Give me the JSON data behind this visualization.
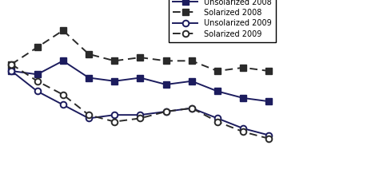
{
  "x": [
    0,
    1,
    2,
    3,
    4,
    5,
    6,
    7,
    8,
    9,
    10
  ],
  "unsolarized_2008": [
    36,
    35.5,
    37.5,
    35,
    34.5,
    35,
    34,
    34.5,
    33,
    32,
    31.5
  ],
  "solarized_2008": [
    37,
    39.5,
    42,
    38.5,
    37.5,
    38,
    37.5,
    37.5,
    36,
    36.5,
    36
  ],
  "unsolarized_2009": [
    36,
    33,
    31,
    29,
    29.5,
    29.5,
    30,
    30.5,
    29,
    27.5,
    26.5
  ],
  "solarized_2009": [
    37,
    34.5,
    32.5,
    29.5,
    28.5,
    29,
    30,
    30.5,
    28.5,
    27,
    26
  ],
  "color_dark": "#1c1c5e",
  "color_black": "#2a2a2a",
  "legend_labels": [
    "Unsolarized 2008",
    "Solarized 2008",
    "Unsolarized 2009",
    "Solarized 2009"
  ],
  "background": "#ffffff",
  "ylim": [
    22,
    46
  ],
  "xlim": [
    -0.3,
    10.3
  ]
}
